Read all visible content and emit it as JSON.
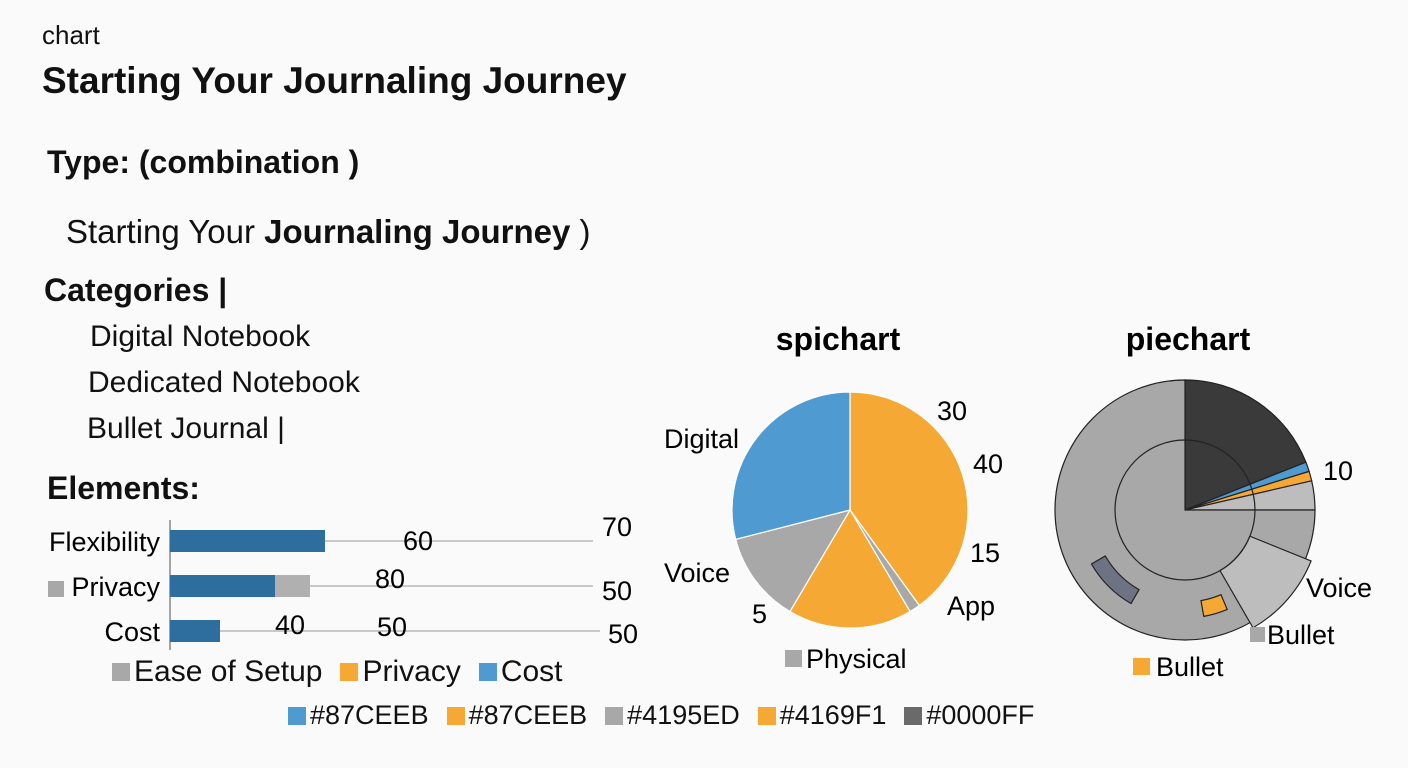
{
  "header": {
    "label": "chart",
    "title": "Starting Your Journaling Journey"
  },
  "type_line": {
    "label": "Type:",
    "value": "(combination )"
  },
  "subtitle_line": {
    "plain": "Starting Your ",
    "bold": "Journaling Journey",
    "tail": " )"
  },
  "categories": {
    "heading": "Categories |",
    "items": [
      "Digital Notebook",
      "Dedicated Notebook",
      "Bullet Journal |"
    ]
  },
  "elements_heading": "Elements:",
  "colors": {
    "bar_dark": "#2e6e9e",
    "bar_gray": "#b0b0b0",
    "gray": "#a8a8a8",
    "gray_light": "#bdbdbd",
    "orange": "#f5a833",
    "blue": "#4f9ad0",
    "dark": "#3a3a3a",
    "purple": "#7a2fb0",
    "slate": "#6e7383"
  },
  "chart_data": [
    {
      "type": "bar",
      "orientation": "horizontal",
      "categories": [
        "Flexibility",
        "Privacy",
        "Cost"
      ],
      "series": [
        {
          "values": [
            31,
            21,
            10
          ]
        },
        {
          "values": [
            null,
            7,
            null
          ]
        }
      ],
      "annotations": [
        {
          "row": "Flexibility",
          "texts": [
            "60",
            "70"
          ]
        },
        {
          "row": "Privacy",
          "texts": [
            "80",
            "50"
          ]
        },
        {
          "row": "Cost",
          "texts": [
            "40",
            "50",
            "50"
          ]
        }
      ],
      "legend": [
        {
          "label": "Ease of Setup",
          "color": "#a8a8a8"
        },
        {
          "label": "Privacy",
          "color": "#f5a833"
        },
        {
          "label": "Cost",
          "color": "#4f9ad0"
        }
      ],
      "grid": true
    },
    {
      "type": "pie",
      "title": "spichart",
      "slices": [
        {
          "value": 40,
          "color": "#f5a833"
        },
        {
          "value": 1.5,
          "color": "#a8a8a8"
        },
        {
          "value": 17,
          "color": "#f5a833"
        },
        {
          "value": 12.5,
          "color": "#a8a8a8"
        },
        {
          "value": 29,
          "color": "#4f9ad0"
        }
      ],
      "labels": [
        "Digital",
        "30",
        "40",
        "15",
        "App",
        "Voice",
        "5"
      ],
      "legend": [
        {
          "label": "Physical",
          "color": "#a8a8a8"
        }
      ]
    },
    {
      "type": "pie",
      "title": "piechart",
      "slices": [
        {
          "value": 19,
          "color": "#3a3a3a"
        },
        {
          "value": 1.2,
          "color": "#4f9ad0"
        },
        {
          "value": 1.2,
          "color": "#f5a833"
        },
        {
          "value": 3.6,
          "color": "#bdbdbd"
        },
        {
          "value": 75,
          "color": "#a8a8a8"
        }
      ],
      "labels": [
        "10",
        "Voice",
        "Bullet"
      ],
      "legend": [
        {
          "label": "Bullet",
          "color": "#f5a833"
        }
      ]
    }
  ],
  "color_legend": [
    {
      "label": "#87CEEB",
      "color": "#4f9ad0"
    },
    {
      "label": "#87CEEB",
      "color": "#f5a833"
    },
    {
      "label": "#4195ED",
      "color": "#a8a8a8"
    },
    {
      "label": "#4169F1",
      "color": "#f5a833"
    },
    {
      "label": "#0000FF",
      "color": "#6a6a6a"
    }
  ]
}
